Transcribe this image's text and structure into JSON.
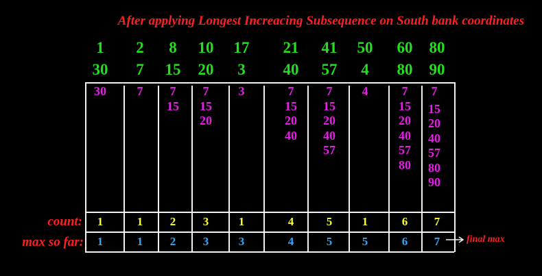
{
  "title": "After applying Longest Increacing Subsequence on  South bank coordinates",
  "north": [
    "1",
    "2",
    "8",
    "10",
    "17",
    "21",
    "41",
    "50",
    "60",
    "80"
  ],
  "south": [
    "30",
    "7",
    "15",
    "20",
    "3",
    "40",
    "57",
    "4",
    "80",
    "90"
  ],
  "subsequences": [
    [
      "30"
    ],
    [
      "7"
    ],
    [
      "7",
      "15"
    ],
    [
      "7",
      "15",
      "20"
    ],
    [
      "3"
    ],
    [
      "7",
      "15",
      "20",
      "40"
    ],
    [
      "7",
      "15",
      "20",
      "40",
      "57"
    ],
    [
      "4"
    ],
    [
      "7",
      "15",
      "20",
      "40",
      "57",
      "80"
    ],
    [
      "7",
      "15",
      "20",
      "40",
      "57",
      "80",
      "90"
    ]
  ],
  "count_label": "count:",
  "counts": [
    "1",
    "1",
    "2",
    "3",
    "1",
    "4",
    "5",
    "1",
    "6",
    "7"
  ],
  "max_label": "max so far:",
  "max_so_far": [
    "1",
    "1",
    "2",
    "3",
    "3",
    "4",
    "5",
    "5",
    "6",
    "7"
  ],
  "final_label": "final max",
  "colors": {
    "title": "#ff1f1f",
    "header": "#22e01e",
    "subsequence": "#e61ee6",
    "count": "#ffff22",
    "max": "#2ea8ff",
    "grid": "#f2f2f2"
  }
}
